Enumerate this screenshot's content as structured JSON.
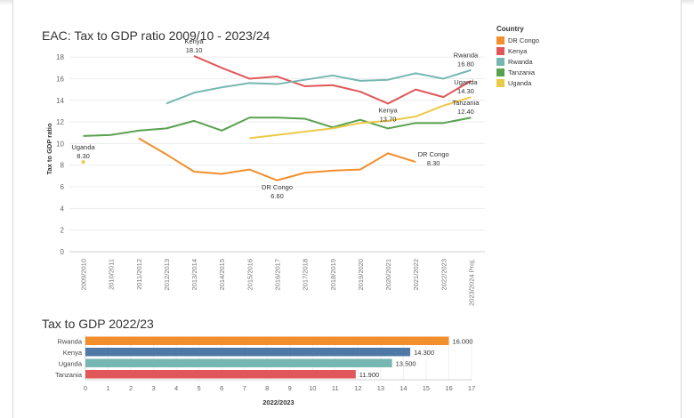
{
  "chart_data": [
    {
      "type": "line",
      "title": "EAC: Tax to GDP ratio 2009/10 - 2023/24",
      "ylabel": "Tax to GDP ratio",
      "xlabel": "",
      "ylim": [
        0,
        19
      ],
      "yticks": [
        0,
        2,
        4,
        6,
        8,
        10,
        12,
        14,
        16,
        18
      ],
      "grid": "horizontal",
      "categories": [
        "2009/2010",
        "2010/2011",
        "2011/2012",
        "2012/2013",
        "2013/2014",
        "2014/2015",
        "2015/2016",
        "2016/2017",
        "2017/2018",
        "2018/2019",
        "2019/2020",
        "2020/2021",
        "2021/2022",
        "2022/2023",
        "2023/2024 Proj."
      ],
      "legend_title": "Country",
      "legend_position": "right",
      "series": [
        {
          "name": "DR Congo",
          "color": "#f28e2b",
          "values": [
            null,
            null,
            10.5,
            9.0,
            7.4,
            7.2,
            7.6,
            6.6,
            7.3,
            7.5,
            7.6,
            9.1,
            8.3,
            null,
            null
          ]
        },
        {
          "name": "Kenya",
          "color": "#e15759",
          "values": [
            null,
            null,
            null,
            null,
            18.1,
            17.0,
            16.0,
            16.2,
            15.3,
            15.4,
            14.8,
            13.7,
            15.0,
            14.3,
            15.8
          ]
        },
        {
          "name": "Rwanda",
          "color": "#76b7b2",
          "values": [
            null,
            null,
            null,
            13.7,
            14.7,
            15.2,
            15.6,
            15.5,
            15.9,
            16.3,
            15.8,
            15.9,
            16.5,
            16.0,
            16.8
          ]
        },
        {
          "name": "Tanzania",
          "color": "#59a14f",
          "values": [
            10.7,
            10.8,
            11.2,
            11.4,
            12.1,
            11.2,
            12.4,
            12.4,
            12.3,
            11.5,
            12.2,
            11.4,
            11.9,
            11.9,
            12.4
          ]
        },
        {
          "name": "Uganda",
          "color": "#edc948",
          "values": [
            8.3,
            null,
            null,
            null,
            null,
            null,
            10.5,
            10.8,
            11.1,
            11.4,
            11.9,
            12.1,
            12.5,
            13.5,
            14.3
          ]
        }
      ],
      "annotations": [
        {
          "series": "Kenya",
          "index": 4,
          "lines": [
            "Kenya",
            "18.10"
          ],
          "pos": "above"
        },
        {
          "series": "Rwanda",
          "index": 14,
          "lines": [
            "Rwanda",
            "16.80"
          ],
          "pos": "above"
        },
        {
          "series": "Uganda",
          "index": 14,
          "lines": [
            "Uganda",
            "14.30"
          ],
          "pos": "above"
        },
        {
          "series": "Kenya",
          "index": 11,
          "lines": [
            "Kenya",
            "13.70"
          ],
          "pos": "below"
        },
        {
          "series": "Tanzania",
          "index": 14,
          "lines": [
            "Tanzania",
            "12.40"
          ],
          "pos": "above"
        },
        {
          "series": "Uganda",
          "index": 0,
          "lines": [
            "Uganda",
            "8.30"
          ],
          "pos": "above"
        },
        {
          "series": "DR Congo",
          "index": 12,
          "lines": [
            "DR Congo",
            "8.30"
          ],
          "pos": "right"
        },
        {
          "series": "DR Congo",
          "index": 7,
          "lines": [
            "DR Congo",
            "6.60"
          ],
          "pos": "below"
        }
      ]
    },
    {
      "type": "bar",
      "orientation": "horizontal",
      "title": "Tax to GDP 2022/23",
      "xlabel": "2022/2023",
      "xlim": [
        0,
        17
      ],
      "xticks": [
        0,
        1,
        2,
        3,
        4,
        5,
        6,
        7,
        8,
        9,
        10,
        11,
        12,
        13,
        14,
        15,
        16,
        17
      ],
      "categories": [
        "Rwanda",
        "Kenya",
        "Uganda",
        "Tanzania"
      ],
      "values": [
        16.0,
        14.3,
        13.5,
        11.9
      ],
      "value_labels": [
        "16.000",
        "14.300",
        "13.500",
        "11.900"
      ],
      "colors": [
        "#f28e2b",
        "#4e79a7",
        "#76b7b2",
        "#e15759"
      ]
    }
  ]
}
